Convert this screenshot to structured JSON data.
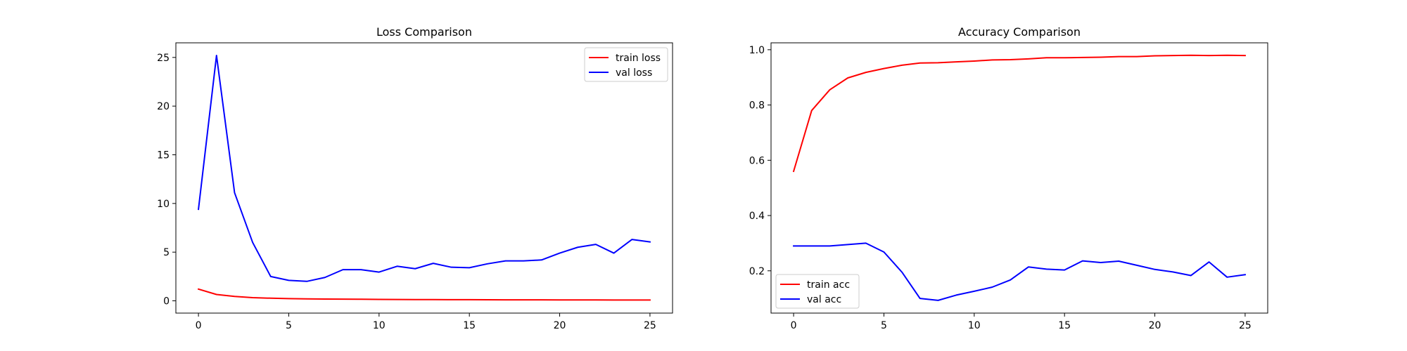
{
  "chart_data": [
    {
      "type": "line",
      "title": "Loss Comparison",
      "xlabel": "",
      "ylabel": "",
      "xlim": [
        -1.25,
        26.25
      ],
      "ylim": [
        -1.26,
        26.5
      ],
      "xticks": [
        0,
        5,
        10,
        15,
        20,
        25
      ],
      "yticks": [
        0,
        5,
        10,
        15,
        20,
        25
      ],
      "legend_position": "top-right",
      "grid": false,
      "x": [
        0,
        1,
        2,
        3,
        4,
        5,
        6,
        7,
        8,
        9,
        10,
        11,
        12,
        13,
        14,
        15,
        16,
        17,
        18,
        19,
        20,
        21,
        22,
        23,
        24,
        25
      ],
      "series": [
        {
          "name": "train loss",
          "color": "#ff0000",
          "values": [
            1.2,
            0.65,
            0.45,
            0.33,
            0.27,
            0.23,
            0.2,
            0.18,
            0.17,
            0.16,
            0.15,
            0.14,
            0.13,
            0.125,
            0.12,
            0.115,
            0.11,
            0.105,
            0.1,
            0.1,
            0.095,
            0.09,
            0.09,
            0.085,
            0.085,
            0.08
          ]
        },
        {
          "name": "val loss",
          "color": "#0000ff",
          "values": [
            9.4,
            25.2,
            11.1,
            6.0,
            2.5,
            2.1,
            2.0,
            2.4,
            3.2,
            3.2,
            2.95,
            3.55,
            3.3,
            3.85,
            3.45,
            3.4,
            3.8,
            4.1,
            4.1,
            4.2,
            4.9,
            5.5,
            5.8,
            4.9,
            6.3,
            6.05
          ]
        }
      ]
    },
    {
      "type": "line",
      "title": "Accuracy Comparison",
      "xlabel": "",
      "ylabel": "",
      "xlim": [
        -1.25,
        26.25
      ],
      "ylim": [
        0.047,
        1.025
      ],
      "xticks": [
        0,
        5,
        10,
        15,
        20,
        25
      ],
      "yticks": [
        0.2,
        0.4,
        0.6,
        0.8,
        1.0
      ],
      "ytick_labels": [
        "0.2",
        "0.4",
        "0.6",
        "0.8",
        "1.0"
      ],
      "legend_position": "bottom-left",
      "grid": false,
      "x": [
        0,
        1,
        2,
        3,
        4,
        5,
        6,
        7,
        8,
        9,
        10,
        11,
        12,
        13,
        14,
        15,
        16,
        17,
        18,
        19,
        20,
        21,
        22,
        23,
        24,
        25
      ],
      "series": [
        {
          "name": "train acc",
          "color": "#ff0000",
          "values": [
            0.56,
            0.78,
            0.855,
            0.898,
            0.918,
            0.932,
            0.944,
            0.952,
            0.953,
            0.956,
            0.959,
            0.963,
            0.964,
            0.967,
            0.971,
            0.971,
            0.972,
            0.973,
            0.975,
            0.975,
            0.978,
            0.979,
            0.98,
            0.979,
            0.98,
            0.979
          ]
        },
        {
          "name": "val acc",
          "color": "#0000ff",
          "values": [
            0.29,
            0.29,
            0.29,
            0.295,
            0.3,
            0.268,
            0.195,
            0.1,
            0.093,
            0.112,
            0.126,
            0.141,
            0.167,
            0.214,
            0.206,
            0.203,
            0.236,
            0.23,
            0.235,
            0.22,
            0.205,
            0.196,
            0.183,
            0.232,
            0.177,
            0.186
          ]
        }
      ]
    }
  ]
}
